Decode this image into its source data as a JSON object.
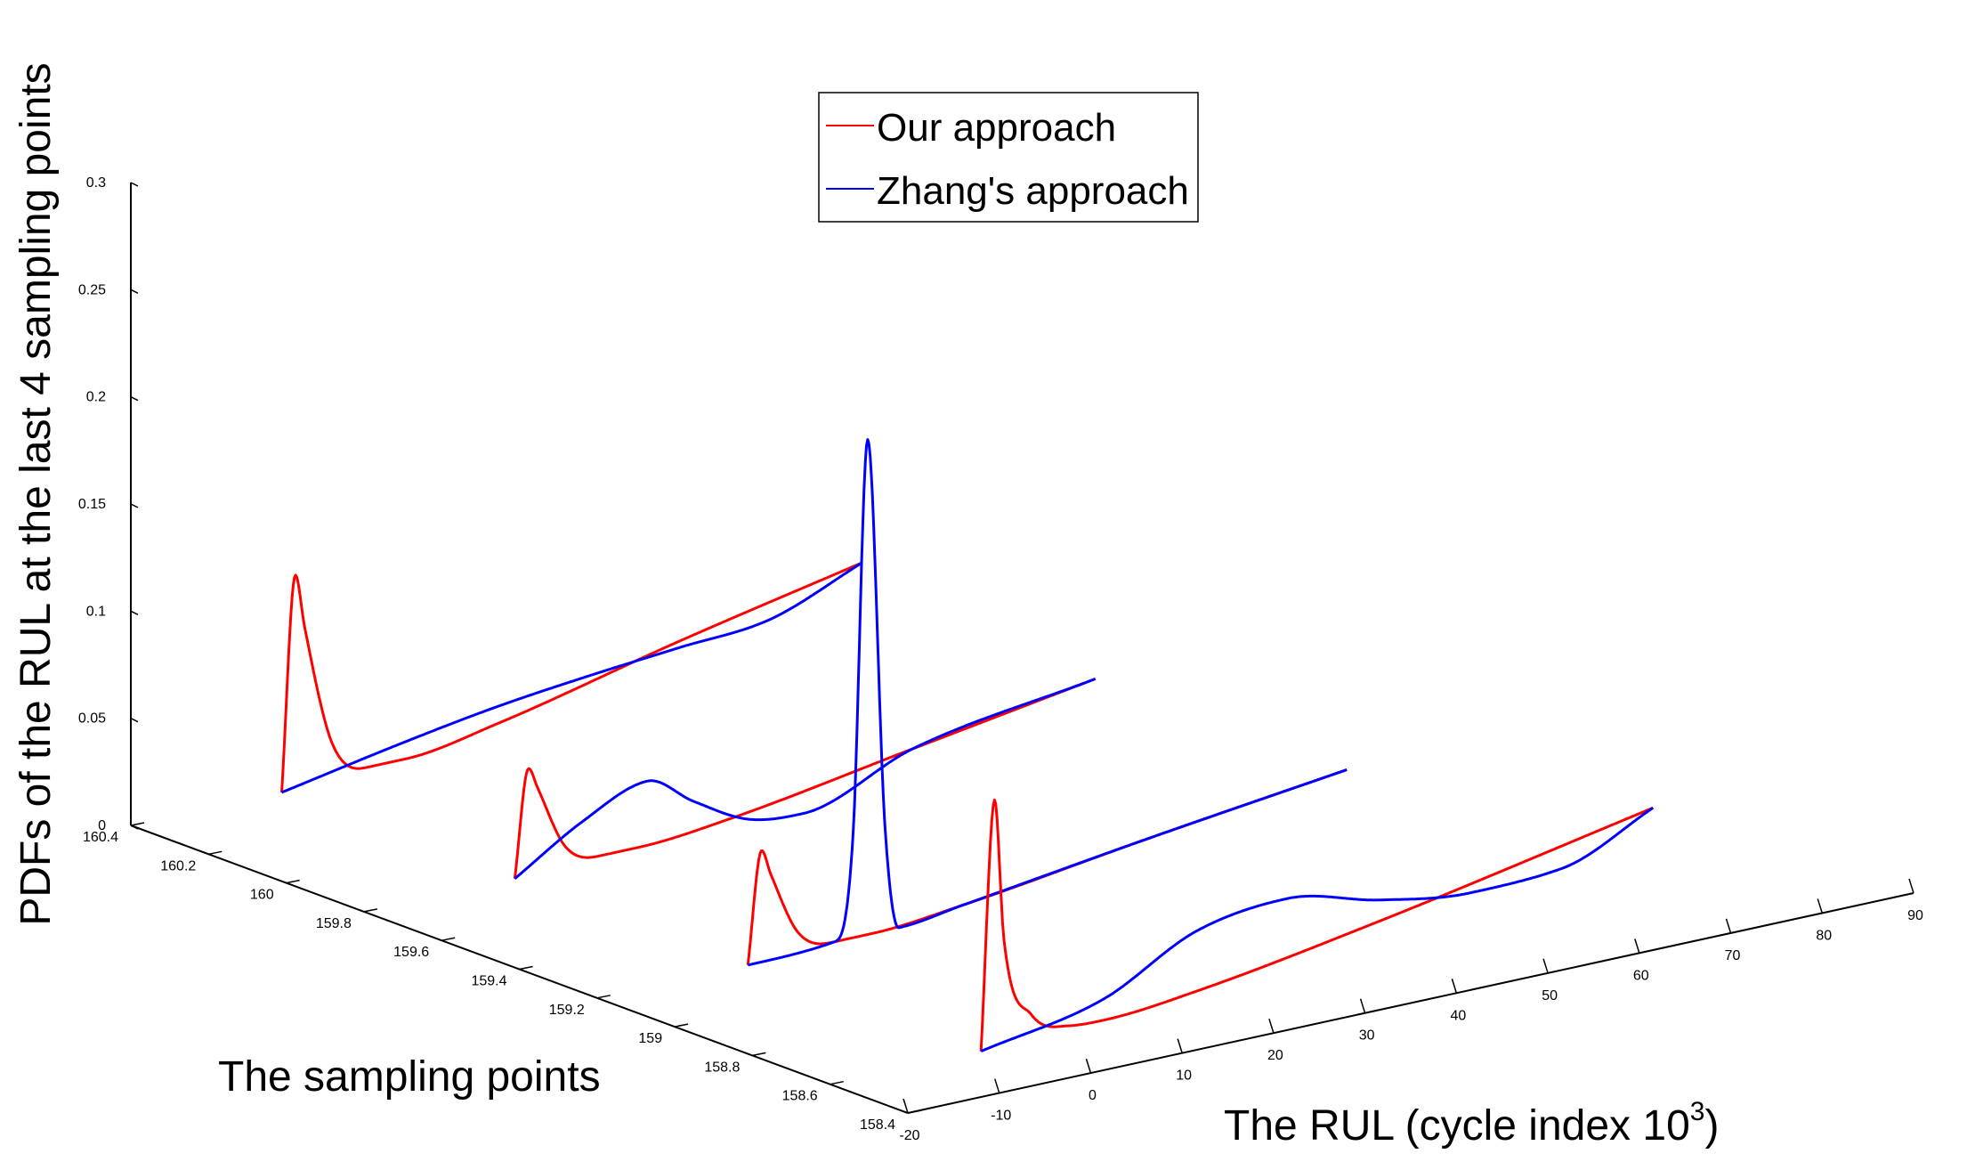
{
  "chart_data": {
    "type": "line",
    "view": "3d-waterfall",
    "zlabel": "PDFs of the RUL at the last 4 sampling points",
    "ylabel": "The sampling points",
    "xlabel_main": "The RUL (cycle index 10",
    "xlabel_sup": "3",
    "xlabel_close": ")",
    "xlim": [
      -20,
      90
    ],
    "ylim": [
      158.4,
      160.4
    ],
    "zlim": [
      0,
      0.3
    ],
    "x_ticks": [
      "-20",
      "-10",
      "0",
      "10",
      "20",
      "30",
      "40",
      "50",
      "60",
      "70",
      "80",
      "90"
    ],
    "x_tick_values": [
      -20,
      -10,
      0,
      10,
      20,
      30,
      40,
      50,
      60,
      70,
      80,
      90
    ],
    "y_ticks": [
      "158.4",
      "158.6",
      "158.8",
      "159",
      "159.2",
      "159.4",
      "159.6",
      "159.8",
      "160",
      "160.2",
      "160.4"
    ],
    "y_tick_values": [
      158.4,
      158.6,
      158.8,
      159.0,
      159.2,
      159.4,
      159.6,
      159.8,
      160.0,
      160.2,
      160.4
    ],
    "z_ticks": [
      "0",
      "0.05",
      "0.1",
      "0.15",
      "0.2",
      "0.25",
      "0.3"
    ],
    "z_tick_values": [
      0,
      0.05,
      0.1,
      0.15,
      0.2,
      0.25,
      0.3
    ],
    "legend": {
      "position": "top-center",
      "entries": [
        {
          "name": "Our approach",
          "color": "#ff0000"
        },
        {
          "name": "Zhang's approach",
          "color": "#0000ff"
        }
      ]
    },
    "series": [
      {
        "name": "Our approach",
        "color": "#ff0000",
        "curves": [
          {
            "y": 160.4,
            "x_start": -3.5,
            "x_end": 60,
            "points": [
              [
                -3.5,
                0
              ],
              [
                -2,
                0.1
              ],
              [
                -1,
                0.075
              ],
              [
                2,
                0.018
              ],
              [
                6,
                0.003
              ],
              [
                10,
                0.003
              ],
              [
                20,
                0.01
              ],
              [
                40,
                0.03
              ],
              [
                60,
                0.048
              ]
            ]
          },
          {
            "y": 159.8,
            "x_start": -3.5,
            "x_end": 60,
            "points": [
              [
                -3.5,
                0
              ],
              [
                -2,
                0.05
              ],
              [
                -1,
                0.04
              ],
              [
                2,
                0.01
              ],
              [
                6,
                0.002
              ],
              [
                10,
                0.002
              ],
              [
                20,
                0.006
              ],
              [
                40,
                0.02
              ],
              [
                60,
                0.034
              ]
            ]
          },
          {
            "y": 159.2,
            "x_start": -3.5,
            "x_end": 62,
            "points": [
              [
                -3.5,
                0
              ],
              [
                -2,
                0.052
              ],
              [
                -1,
                0.04
              ],
              [
                2,
                0.01
              ],
              [
                6,
                0.002
              ],
              [
                10,
                0.002
              ],
              [
                20,
                0.006
              ],
              [
                40,
                0.018
              ],
              [
                62,
                0.03
              ]
            ]
          },
          {
            "y": 158.6,
            "x_start": -3.5,
            "x_end": 70,
            "points": [
              [
                -3.5,
                0
              ],
              [
                -2,
                0.116
              ],
              [
                -1,
                0.05
              ],
              [
                2,
                0.012
              ],
              [
                6,
                0.003
              ],
              [
                10,
                0.002
              ],
              [
                20,
                0.006
              ],
              [
                40,
                0.02
              ],
              [
                70,
                0.045
              ]
            ]
          }
        ]
      },
      {
        "name": "Zhang's approach",
        "color": "#0000ff",
        "curves": [
          {
            "y": 160.4,
            "x_start": -3.5,
            "x_end": 60,
            "points": [
              [
                -3.5,
                0
              ],
              [
                10,
                0.011
              ],
              [
                20,
                0.018
              ],
              [
                30,
                0.023
              ],
              [
                40,
                0.027
              ],
              [
                50,
                0.031
              ],
              [
                60,
                0.048
              ]
            ]
          },
          {
            "y": 159.8,
            "x_start": -3.5,
            "x_end": 60,
            "points": [
              [
                -3.5,
                0
              ],
              [
                4,
                0.02
              ],
              [
                11,
                0.032
              ],
              [
                16,
                0.018
              ],
              [
                22,
                0.004
              ],
              [
                28,
                0.001
              ],
              [
                40,
                0.02
              ],
              [
                60,
                0.034
              ]
            ]
          },
          {
            "y": 159.2,
            "x_start": -3.5,
            "x_end": 62,
            "points": [
              [
                -3.5,
                0
              ],
              [
                6,
                0.002
              ],
              [
                8,
                0.05
              ],
              [
                9.6,
                0.233
              ],
              [
                11.5,
                0.05
              ],
              [
                13,
                0.002
              ],
              [
                20,
                0.006
              ],
              [
                40,
                0.018
              ],
              [
                62,
                0.03
              ]
            ]
          },
          {
            "y": 158.6,
            "x_start": -3.5,
            "x_end": 70,
            "points": [
              [
                -3.5,
                0
              ],
              [
                10,
                0.012
              ],
              [
                20,
                0.034
              ],
              [
                30,
                0.04
              ],
              [
                40,
                0.03
              ],
              [
                50,
                0.024
              ],
              [
                60,
                0.026
              ],
              [
                70,
                0.045
              ]
            ]
          }
        ]
      }
    ]
  }
}
